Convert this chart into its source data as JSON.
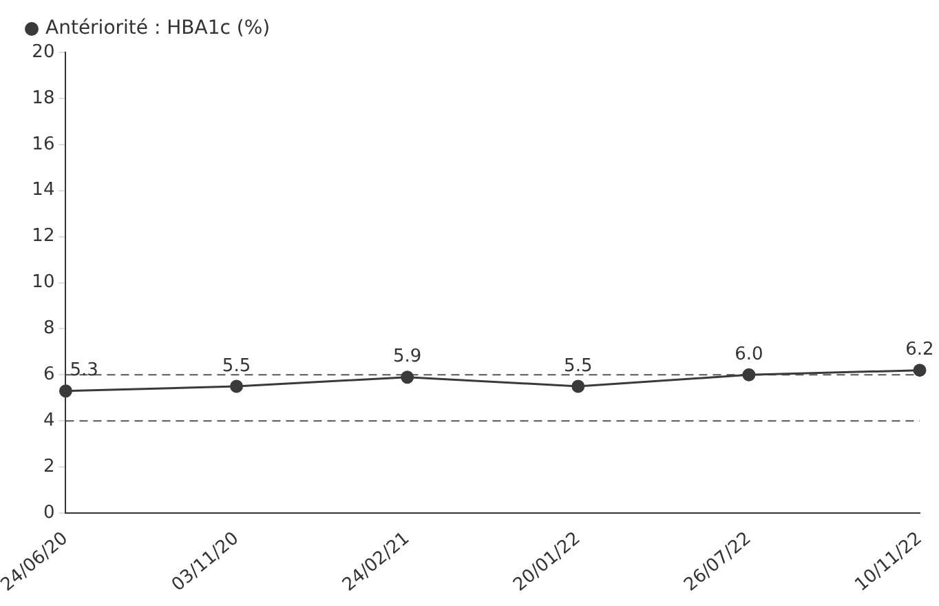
{
  "chart_data": {
    "type": "line",
    "categories": [
      "24/06/20",
      "03/11/20",
      "24/02/21",
      "20/01/22",
      "26/07/22",
      "10/11/22"
    ],
    "series": [
      {
        "name": "Antériorité : HBA1c (%)",
        "color": "#3a3a3a",
        "values": [
          5.3,
          5.5,
          5.9,
          5.5,
          6.0,
          6.2
        ],
        "value_labels": [
          "5.3",
          "5.5",
          "5.9",
          "5.5",
          "6.0",
          "6.2"
        ]
      }
    ],
    "ylim": [
      0,
      20
    ],
    "yticks": [
      0,
      2,
      4,
      6,
      8,
      10,
      12,
      14,
      16,
      18,
      20
    ],
    "ref_lines": [
      {
        "axis": "y",
        "value": 6,
        "color": "#555555",
        "line_style": "dashed"
      },
      {
        "axis": "y",
        "value": 4,
        "color": "#555555",
        "line_style": "dashed"
      }
    ],
    "legend": "top left",
    "marker": "circle",
    "line_style": "solid",
    "grid": false
  }
}
